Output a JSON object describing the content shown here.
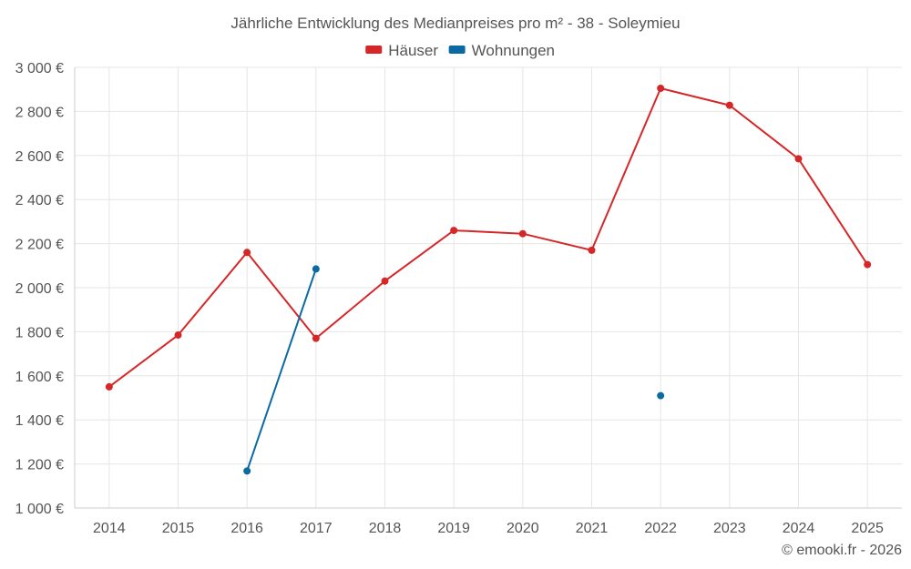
{
  "chart_data": {
    "type": "line",
    "title": "Jährliche Entwicklung des Medianpreises pro m² - 38 - Soleymieu",
    "categories": [
      "2014",
      "2015",
      "2016",
      "2017",
      "2018",
      "2019",
      "2020",
      "2021",
      "2022",
      "2023",
      "2024",
      "2025"
    ],
    "series": [
      {
        "name": "Häuser",
        "color": "#d62728",
        "values": [
          1550,
          1785,
          2160,
          1770,
          2030,
          2260,
          2245,
          2170,
          2905,
          2828,
          2585,
          2105
        ]
      },
      {
        "name": "Wohnungen",
        "color": "#0a6aa1",
        "values": [
          null,
          null,
          1168,
          2085,
          null,
          null,
          null,
          null,
          1510,
          null,
          null,
          null
        ]
      }
    ],
    "ylim": [
      1000,
      3000
    ],
    "yticks": [
      1000,
      1200,
      1400,
      1600,
      1800,
      2000,
      2200,
      2400,
      2600,
      2800,
      3000
    ],
    "ytick_labels": [
      "1 000 €",
      "1 200 €",
      "1 400 €",
      "1 600 €",
      "1 800 €",
      "2 000 €",
      "2 200 €",
      "2 400 €",
      "2 600 €",
      "2 800 €",
      "3 000 €"
    ],
    "xlabel": "",
    "ylabel": "",
    "grid": true,
    "legend_position": "top-center"
  },
  "credit": "© emooki.fr - 2026"
}
